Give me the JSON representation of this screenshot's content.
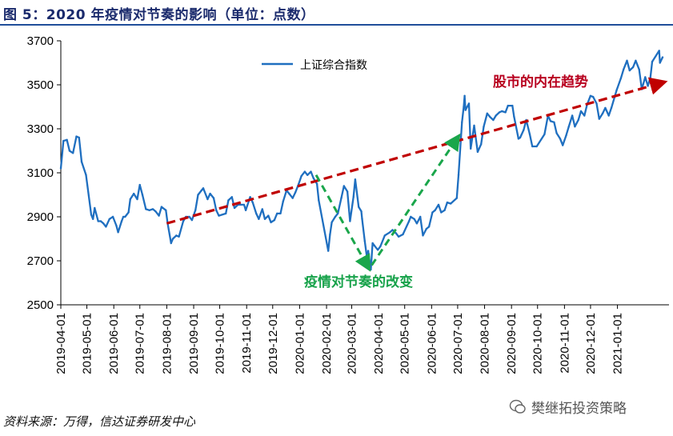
{
  "figure": {
    "title": "图 5：2020 年疫情对节奏的影响（单位：点数）",
    "source": "资料来源：万得，信达证券研发中心",
    "watermark": "樊继拓投资策略"
  },
  "chart_data": {
    "type": "line",
    "title": "",
    "xlabel": "",
    "ylabel": "",
    "ylim": [
      2500,
      3700
    ],
    "yticks": [
      2500,
      2700,
      2900,
      3100,
      3300,
      3500,
      3700
    ],
    "x_ticks": [
      "2019-04-01",
      "2019-05-01",
      "2019-06-01",
      "2019-07-01",
      "2019-08-01",
      "2019-09-01",
      "2019-10-01",
      "2019-11-01",
      "2019-12-01",
      "2020-01-01",
      "2020-02-01",
      "2020-03-01",
      "2020-04-01",
      "2020-05-01",
      "2020-06-01",
      "2020-07-01",
      "2020-08-01",
      "2020-09-01",
      "2020-10-01",
      "2020-11-01",
      "2020-12-01",
      "2021-01-01"
    ],
    "xlim": [
      "2019-04-01",
      "2021-02-22"
    ],
    "legend_position": "top-left",
    "series": [
      {
        "name": "上证综合指数",
        "color": "#1f6fc0",
        "points": [
          [
            "2019-04-01",
            3120
          ],
          [
            "2019-04-04",
            3245
          ],
          [
            "2019-04-08",
            3250
          ],
          [
            "2019-04-11",
            3200
          ],
          [
            "2019-04-15",
            3190
          ],
          [
            "2019-04-19",
            3265
          ],
          [
            "2019-04-22",
            3260
          ],
          [
            "2019-04-25",
            3150
          ],
          [
            "2019-04-30",
            3090
          ],
          [
            "2019-05-06",
            2910
          ],
          [
            "2019-05-08",
            2890
          ],
          [
            "2019-05-10",
            2940
          ],
          [
            "2019-05-14",
            2880
          ],
          [
            "2019-05-17",
            2880
          ],
          [
            "2019-05-20",
            2870
          ],
          [
            "2019-05-23",
            2855
          ],
          [
            "2019-05-27",
            2890
          ],
          [
            "2019-05-31",
            2900
          ],
          [
            "2019-06-04",
            2860
          ],
          [
            "2019-06-06",
            2830
          ],
          [
            "2019-06-10",
            2880
          ],
          [
            "2019-06-12",
            2900
          ],
          [
            "2019-06-14",
            2900
          ],
          [
            "2019-06-18",
            2920
          ],
          [
            "2019-06-20",
            2980
          ],
          [
            "2019-06-24",
            3005
          ],
          [
            "2019-06-28",
            2980
          ],
          [
            "2019-07-01",
            3045
          ],
          [
            "2019-07-04",
            3000
          ],
          [
            "2019-07-08",
            2935
          ],
          [
            "2019-07-12",
            2930
          ],
          [
            "2019-07-16",
            2935
          ],
          [
            "2019-07-19",
            2925
          ],
          [
            "2019-07-23",
            2905
          ],
          [
            "2019-07-26",
            2945
          ],
          [
            "2019-07-31",
            2930
          ],
          [
            "2019-08-02",
            2870
          ],
          [
            "2019-08-06",
            2780
          ],
          [
            "2019-08-08",
            2800
          ],
          [
            "2019-08-12",
            2815
          ],
          [
            "2019-08-15",
            2810
          ],
          [
            "2019-08-20",
            2880
          ],
          [
            "2019-08-23",
            2900
          ],
          [
            "2019-08-27",
            2900
          ],
          [
            "2019-08-30",
            2885
          ],
          [
            "2019-09-03",
            2930
          ],
          [
            "2019-09-06",
            3000
          ],
          [
            "2019-09-10",
            3020
          ],
          [
            "2019-09-12",
            3030
          ],
          [
            "2019-09-17",
            2980
          ],
          [
            "2019-09-20",
            3005
          ],
          [
            "2019-09-24",
            2985
          ],
          [
            "2019-09-27",
            2930
          ],
          [
            "2019-09-30",
            2905
          ],
          [
            "2019-10-08",
            2915
          ],
          [
            "2019-10-11",
            2975
          ],
          [
            "2019-10-15",
            2990
          ],
          [
            "2019-10-18",
            2940
          ],
          [
            "2019-10-22",
            2955
          ],
          [
            "2019-10-25",
            2955
          ],
          [
            "2019-10-29",
            2955
          ],
          [
            "2019-10-31",
            2930
          ],
          [
            "2019-11-05",
            2990
          ],
          [
            "2019-11-08",
            2965
          ],
          [
            "2019-11-12",
            2915
          ],
          [
            "2019-11-15",
            2890
          ],
          [
            "2019-11-19",
            2935
          ],
          [
            "2019-11-22",
            2890
          ],
          [
            "2019-11-26",
            2905
          ],
          [
            "2019-11-29",
            2875
          ],
          [
            "2019-12-03",
            2885
          ],
          [
            "2019-12-06",
            2915
          ],
          [
            "2019-12-10",
            2915
          ],
          [
            "2019-12-13",
            2970
          ],
          [
            "2019-12-17",
            3020
          ],
          [
            "2019-12-20",
            3005
          ],
          [
            "2019-12-24",
            2985
          ],
          [
            "2019-12-27",
            3010
          ],
          [
            "2019-12-31",
            3050
          ],
          [
            "2020-01-03",
            3085
          ],
          [
            "2020-01-07",
            3105
          ],
          [
            "2020-01-10",
            3090
          ],
          [
            "2020-01-14",
            3105
          ],
          [
            "2020-01-17",
            3075
          ],
          [
            "2020-01-21",
            3050
          ],
          [
            "2020-01-23",
            2975
          ],
          [
            "2020-02-03",
            2745
          ],
          [
            "2020-02-05",
            2820
          ],
          [
            "2020-02-07",
            2875
          ],
          [
            "2020-02-11",
            2900
          ],
          [
            "2020-02-14",
            2915
          ],
          [
            "2020-02-18",
            2985
          ],
          [
            "2020-02-21",
            3040
          ],
          [
            "2020-02-25",
            3015
          ],
          [
            "2020-02-28",
            2880
          ],
          [
            "2020-03-03",
            2990
          ],
          [
            "2020-03-05",
            3070
          ],
          [
            "2020-03-09",
            2945
          ],
          [
            "2020-03-12",
            2925
          ],
          [
            "2020-03-13",
            2890
          ],
          [
            "2020-03-16",
            2790
          ],
          [
            "2020-03-19",
            2700
          ],
          [
            "2020-03-20",
            2745
          ],
          [
            "2020-03-23",
            2660
          ],
          [
            "2020-03-25",
            2780
          ],
          [
            "2020-03-27",
            2770
          ],
          [
            "2020-03-31",
            2750
          ],
          [
            "2020-04-03",
            2765
          ],
          [
            "2020-04-08",
            2815
          ],
          [
            "2020-04-14",
            2830
          ],
          [
            "2020-04-17",
            2840
          ],
          [
            "2020-04-21",
            2825
          ],
          [
            "2020-04-24",
            2810
          ],
          [
            "2020-04-29",
            2820
          ],
          [
            "2020-05-06",
            2880
          ],
          [
            "2020-05-08",
            2900
          ],
          [
            "2020-05-12",
            2890
          ],
          [
            "2020-05-15",
            2870
          ],
          [
            "2020-05-19",
            2900
          ],
          [
            "2020-05-22",
            2815
          ],
          [
            "2020-05-26",
            2845
          ],
          [
            "2020-05-29",
            2855
          ],
          [
            "2020-06-02",
            2920
          ],
          [
            "2020-06-05",
            2930
          ],
          [
            "2020-06-09",
            2955
          ],
          [
            "2020-06-12",
            2920
          ],
          [
            "2020-06-16",
            2930
          ],
          [
            "2020-06-19",
            2965
          ],
          [
            "2020-06-23",
            2960
          ],
          [
            "2020-06-30",
            2985
          ],
          [
            "2020-07-02",
            3090
          ],
          [
            "2020-07-06",
            3330
          ],
          [
            "2020-07-08",
            3400
          ],
          [
            "2020-07-09",
            3450
          ],
          [
            "2020-07-10",
            3385
          ],
          [
            "2020-07-14",
            3415
          ],
          [
            "2020-07-16",
            3210
          ],
          [
            "2020-07-20",
            3315
          ],
          [
            "2020-07-24",
            3195
          ],
          [
            "2020-07-28",
            3230
          ],
          [
            "2020-07-31",
            3310
          ],
          [
            "2020-08-04",
            3370
          ],
          [
            "2020-08-07",
            3355
          ],
          [
            "2020-08-11",
            3340
          ],
          [
            "2020-08-14",
            3360
          ],
          [
            "2020-08-18",
            3375
          ],
          [
            "2020-08-21",
            3380
          ],
          [
            "2020-08-25",
            3375
          ],
          [
            "2020-08-28",
            3405
          ],
          [
            "2020-09-02",
            3405
          ],
          [
            "2020-09-04",
            3355
          ],
          [
            "2020-09-09",
            3255
          ],
          [
            "2020-09-11",
            3260
          ],
          [
            "2020-09-15",
            3295
          ],
          [
            "2020-09-18",
            3340
          ],
          [
            "2020-09-22",
            3275
          ],
          [
            "2020-09-25",
            3220
          ],
          [
            "2020-09-30",
            3220
          ],
          [
            "2020-10-09",
            3275
          ],
          [
            "2020-10-13",
            3360
          ],
          [
            "2020-10-16",
            3335
          ],
          [
            "2020-10-20",
            3330
          ],
          [
            "2020-10-23",
            3280
          ],
          [
            "2020-10-27",
            3255
          ],
          [
            "2020-10-30",
            3225
          ],
          [
            "2020-11-03",
            3270
          ],
          [
            "2020-11-06",
            3310
          ],
          [
            "2020-11-10",
            3360
          ],
          [
            "2020-11-13",
            3310
          ],
          [
            "2020-11-17",
            3340
          ],
          [
            "2020-11-20",
            3380
          ],
          [
            "2020-11-24",
            3360
          ],
          [
            "2020-11-27",
            3410
          ],
          [
            "2020-12-01",
            3450
          ],
          [
            "2020-12-04",
            3445
          ],
          [
            "2020-12-08",
            3415
          ],
          [
            "2020-12-11",
            3345
          ],
          [
            "2020-12-15",
            3370
          ],
          [
            "2020-12-18",
            3395
          ],
          [
            "2020-12-22",
            3360
          ],
          [
            "2020-12-25",
            3395
          ],
          [
            "2020-12-31",
            3475
          ],
          [
            "2021-01-05",
            3530
          ],
          [
            "2021-01-08",
            3570
          ],
          [
            "2021-01-12",
            3610
          ],
          [
            "2021-01-15",
            3565
          ],
          [
            "2021-01-19",
            3580
          ],
          [
            "2021-01-22",
            3610
          ],
          [
            "2021-01-26",
            3570
          ],
          [
            "2021-01-29",
            3480
          ],
          [
            "2021-02-02",
            3535
          ],
          [
            "2021-02-05",
            3495
          ],
          [
            "2021-02-08",
            3535
          ],
          [
            "2021-02-10",
            3605
          ],
          [
            "2021-02-18",
            3655
          ],
          [
            "2021-02-19",
            3600
          ],
          [
            "2021-02-22",
            3625
          ]
        ]
      }
    ],
    "annotations": [
      {
        "name": "trend-arrow",
        "style": "dashed",
        "color": "#c00000",
        "from": [
          "2019-08-01",
          2870
        ],
        "to": [
          "2021-02-22",
          3510
        ],
        "label": "股市的内在趋势"
      },
      {
        "name": "drop-arrow",
        "style": "dashed",
        "color": "#1aa64b",
        "from": [
          "2020-01-20",
          3090
        ],
        "to": [
          "2020-03-20",
          2670
        ]
      },
      {
        "name": "rise-arrow",
        "style": "dashed",
        "color": "#1aa64b",
        "from": [
          "2020-03-24",
          2680
        ],
        "to": [
          "2020-07-01",
          3260
        ]
      },
      {
        "name": "pandemic-label",
        "color": "#1aa64b",
        "label": "疫情对节奏的改变"
      }
    ]
  }
}
